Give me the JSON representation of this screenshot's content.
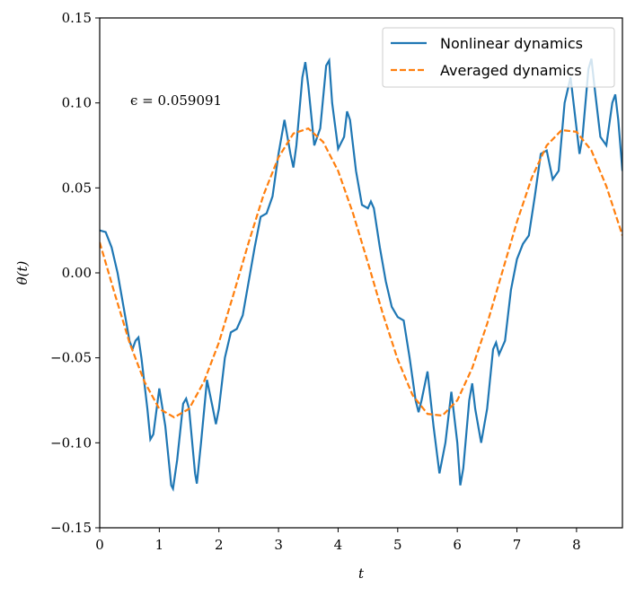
{
  "chart_data": {
    "type": "line",
    "xlabel": "t",
    "ylabel": "θ(t)",
    "annotation": "ϵ = 0.059091",
    "legend": "upper right",
    "xlim": [
      0,
      8.77
    ],
    "ylim": [
      -0.15,
      0.15
    ],
    "xticks": [
      0,
      1,
      2,
      3,
      4,
      5,
      6,
      7,
      8
    ],
    "yticks": [
      {
        "value": -0.15,
        "label": "−0.15"
      },
      {
        "value": -0.1,
        "label": "−0.10"
      },
      {
        "value": -0.05,
        "label": "−0.05"
      },
      {
        "value": 0,
        "label": "0.00"
      },
      {
        "value": 0.05,
        "label": "0.05"
      },
      {
        "value": 0.1,
        "label": "0.10"
      },
      {
        "value": 0.15,
        "label": "0.15"
      }
    ],
    "series": [
      {
        "name": "Nonlinear dynamics",
        "color": "#1f77b4",
        "dash": "solid",
        "x": [
          0,
          0.1,
          0.2,
          0.3,
          0.4,
          0.5,
          0.55,
          0.6,
          0.65,
          0.7,
          0.8,
          0.85,
          0.9,
          1.0,
          1.1,
          1.2,
          1.23,
          1.3,
          1.4,
          1.45,
          1.5,
          1.6,
          1.63,
          1.7,
          1.8,
          1.9,
          1.95,
          2.0,
          2.1,
          2.2,
          2.3,
          2.4,
          2.5,
          2.6,
          2.7,
          2.8,
          2.9,
          3.0,
          3.1,
          3.2,
          3.25,
          3.3,
          3.4,
          3.45,
          3.5,
          3.6,
          3.7,
          3.8,
          3.85,
          3.9,
          4.0,
          4.1,
          4.15,
          4.2,
          4.3,
          4.4,
          4.5,
          4.55,
          4.6,
          4.7,
          4.8,
          4.9,
          5.0,
          5.1,
          5.2,
          5.3,
          5.35,
          5.4,
          5.5,
          5.6,
          5.7,
          5.8,
          5.9,
          6.0,
          6.05,
          6.1,
          6.2,
          6.25,
          6.3,
          6.4,
          6.5,
          6.6,
          6.65,
          6.7,
          6.8,
          6.9,
          7.0,
          7.1,
          7.2,
          7.3,
          7.4,
          7.5,
          7.6,
          7.7,
          7.8,
          7.9,
          8.0,
          8.05,
          8.1,
          8.2,
          8.25,
          8.3,
          8.4,
          8.5,
          8.6,
          8.65,
          8.7,
          8.77
        ],
        "values": [
          0.025,
          0.024,
          0.015,
          0.0,
          -0.02,
          -0.04,
          -0.045,
          -0.04,
          -0.038,
          -0.05,
          -0.08,
          -0.098,
          -0.095,
          -0.068,
          -0.09,
          -0.125,
          -0.127,
          -0.11,
          -0.077,
          -0.074,
          -0.08,
          -0.118,
          -0.124,
          -0.1,
          -0.063,
          -0.08,
          -0.089,
          -0.08,
          -0.05,
          -0.035,
          -0.033,
          -0.025,
          -0.005,
          0.015,
          0.033,
          0.035,
          0.045,
          0.07,
          0.09,
          0.07,
          0.062,
          0.075,
          0.115,
          0.124,
          0.11,
          0.075,
          0.085,
          0.122,
          0.125,
          0.1,
          0.073,
          0.08,
          0.095,
          0.09,
          0.06,
          0.04,
          0.038,
          0.042,
          0.038,
          0.015,
          -0.005,
          -0.02,
          -0.026,
          -0.028,
          -0.05,
          -0.075,
          -0.082,
          -0.075,
          -0.058,
          -0.09,
          -0.118,
          -0.1,
          -0.07,
          -0.1,
          -0.125,
          -0.115,
          -0.075,
          -0.065,
          -0.08,
          -0.1,
          -0.08,
          -0.045,
          -0.041,
          -0.048,
          -0.04,
          -0.01,
          0.008,
          0.017,
          0.022,
          0.045,
          0.07,
          0.072,
          0.055,
          0.06,
          0.1,
          0.115,
          0.085,
          0.07,
          0.08,
          0.12,
          0.126,
          0.11,
          0.08,
          0.075,
          0.1,
          0.105,
          0.09,
          0.06
        ]
      },
      {
        "name": "Averaged dynamics",
        "color": "#ff7f0e",
        "dash": "dashed",
        "x": [
          0,
          0.25,
          0.5,
          0.75,
          1.0,
          1.25,
          1.5,
          1.75,
          2.0,
          2.25,
          2.5,
          2.75,
          3.0,
          3.25,
          3.5,
          3.75,
          4.0,
          4.25,
          4.5,
          4.75,
          5.0,
          5.25,
          5.5,
          5.75,
          6.0,
          6.25,
          6.5,
          6.75,
          7.0,
          7.25,
          7.5,
          7.75,
          8.0,
          8.25,
          8.5,
          8.77
        ],
        "values": [
          0.018,
          -0.012,
          -0.041,
          -0.064,
          -0.08,
          -0.085,
          -0.08,
          -0.064,
          -0.041,
          -0.012,
          0.018,
          0.046,
          0.068,
          0.082,
          0.085,
          0.077,
          0.06,
          0.035,
          0.006,
          -0.024,
          -0.051,
          -0.072,
          -0.083,
          -0.084,
          -0.075,
          -0.056,
          -0.03,
          0.0,
          0.03,
          0.056,
          0.075,
          0.084,
          0.083,
          0.072,
          0.051,
          0.022
        ]
      }
    ]
  }
}
